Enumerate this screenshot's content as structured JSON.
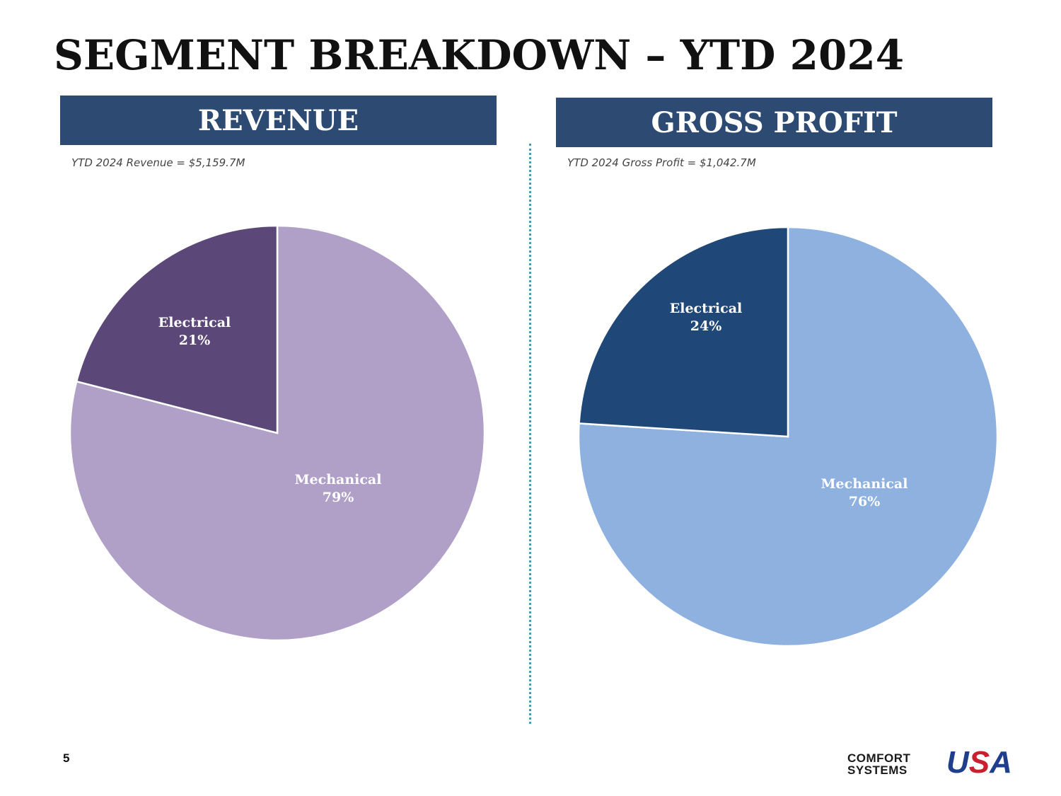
{
  "title": "SEGMENT BREAKDOWN – YTD 2024",
  "page_number": "5",
  "logo": {
    "line1": "COMFORT",
    "line2": "SYSTEMS",
    "brand_u": "U",
    "brand_s": "S",
    "brand_a": "A"
  },
  "revenue": {
    "header": "REVENUE",
    "subtitle": "YTD 2024 Revenue = $5,159.7M"
  },
  "gross_profit": {
    "header": "GROSS PROFIT",
    "subtitle": "YTD 2024 Gross Profit = $1,042.7M"
  },
  "chart_data": [
    {
      "type": "pie",
      "title": "REVENUE",
      "subtitle": "YTD 2024 Revenue = $5,159.7M",
      "categories": [
        "Mechanical",
        "Electrical"
      ],
      "values": [
        79,
        21
      ],
      "labels": [
        "79%",
        "21%"
      ],
      "colors": [
        "#b09fc6",
        "#5c4878"
      ],
      "start_angle_deg": 0,
      "direction": "clockwise"
    },
    {
      "type": "pie",
      "title": "GROSS PROFIT",
      "subtitle": "YTD 2024 Gross Profit = $1,042.7M",
      "categories": [
        "Mechanical",
        "Electrical"
      ],
      "values": [
        76,
        24
      ],
      "labels": [
        "76%",
        "24%"
      ],
      "colors": [
        "#8eb1e0",
        "#1f4778"
      ],
      "start_angle_deg": 0,
      "direction": "clockwise"
    }
  ]
}
